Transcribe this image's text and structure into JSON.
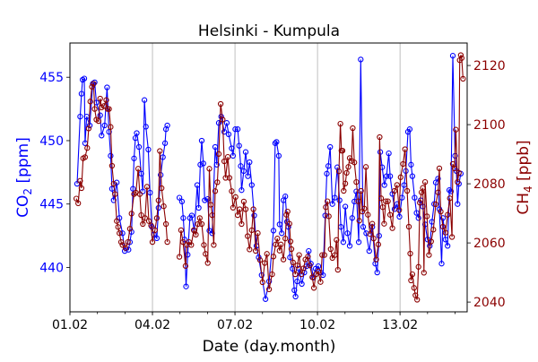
{
  "chart_data": {
    "type": "line",
    "title": "Helsinki - Kumpula",
    "xlabel": "Date (day.month)",
    "ylabel_left": "CO2 [ppm]",
    "ylabel_left_main": "CO",
    "ylabel_left_sub": "2",
    "ylabel_left_unit": " [ppm]",
    "ylabel_right": "CH4 [ppb]",
    "ylabel_right_main": "CH",
    "ylabel_right_sub": "4",
    "ylabel_right_unit": " [ppb]",
    "x_unit": "days since 01.02 00:00",
    "xlim": [
      0,
      14.44
    ],
    "ylim_left": [
      436.5,
      457.7
    ],
    "ylim_right": [
      2036.7,
      2127.6
    ],
    "x_ticks": [
      0,
      3,
      6,
      9,
      12
    ],
    "x_tick_labels": [
      "01.02",
      "04.02",
      "07.02",
      "10.02",
      "13.02"
    ],
    "x_minor_ticks_every": 1,
    "y_left_ticks": [
      440,
      445,
      450,
      455
    ],
    "y_right_ticks": [
      2040,
      2060,
      2080,
      2100,
      2120
    ],
    "grid": "vertical at major x ticks",
    "colors": {
      "co2": "#0000ff",
      "ch4": "#8b0000",
      "grid": "#b0b0b0"
    },
    "series": [
      {
        "name": "CO2",
        "axis": "left",
        "marker": "open-circle",
        "x": [
          0.26,
          0.37,
          0.42,
          0.46,
          0.52,
          0.55,
          0.61,
          0.72,
          0.83,
          0.9,
          0.96,
          1.1,
          1.15,
          1.26,
          1.35,
          1.42,
          1.48,
          1.53,
          1.59,
          1.7,
          1.8,
          1.91,
          1.99,
          2.13,
          2.18,
          2.24,
          2.29,
          2.33,
          2.38,
          2.43,
          2.51,
          2.59,
          2.65,
          2.71,
          2.76,
          2.85,
          2.91,
          2.98,
          3.05,
          3.16,
          3.22,
          3.3,
          3.38,
          3.46,
          3.49,
          3.54,
          null,
          3.98,
          4.07,
          4.12,
          4.17,
          4.22,
          4.28,
          4.36,
          4.43,
          4.52,
          4.63,
          4.68,
          4.74,
          4.79,
          4.85,
          4.9,
          5.01,
          5.07,
          5.17,
          5.28,
          5.34,
          5.41,
          5.5,
          5.61,
          5.7,
          5.77,
          5.88,
          5.93,
          6.01,
          6.1,
          6.15,
          6.21,
          6.24,
          6.32,
          6.39,
          6.47,
          6.53,
          6.61,
          6.7,
          6.78,
          6.86,
          6.97,
          7.11,
          7.24,
          7.4,
          7.46,
          7.51,
          7.59,
          7.62,
          7.7,
          7.76,
          7.83,
          7.89,
          7.94,
          8.0,
          8.09,
          8.16,
          8.2,
          8.26,
          8.33,
          8.43,
          8.52,
          8.6,
          8.68,
          8.76,
          8.85,
          8.93,
          9.03,
          9.11,
          9.2,
          9.28,
          9.34,
          9.39,
          9.46,
          9.54,
          9.63,
          9.72,
          9.8,
          9.85,
          9.94,
          10.01,
          10.09,
          10.17,
          10.26,
          10.34,
          10.41,
          10.5,
          10.57,
          10.66,
          10.77,
          10.88,
          10.99,
          11.1,
          11.17,
          11.24,
          11.28,
          11.35,
          11.43,
          11.51,
          11.59,
          11.64,
          11.72,
          11.8,
          11.89,
          11.98,
          12.07,
          12.15,
          12.21,
          12.29,
          12.35,
          12.4,
          12.45,
          12.53,
          12.6,
          12.67,
          12.75,
          12.83,
          12.91,
          13.0,
          13.08,
          13.16,
          13.24,
          13.3,
          13.38,
          13.43,
          13.51,
          13.56,
          13.65,
          13.73,
          13.79,
          13.85,
          13.92,
          14.0,
          14.05,
          14.09,
          14.14,
          14.21
        ],
        "y": [
          446.6,
          451.9,
          453.7,
          454.8,
          454.9,
          449.8,
          451.9,
          451.2,
          454.5,
          454.6,
          453.0,
          452.0,
          450.4,
          451.2,
          454.2,
          450.7,
          448.8,
          446.2,
          445.3,
          446.7,
          443.9,
          442.7,
          441.3,
          441.4,
          442.0,
          442.8,
          446.2,
          448.6,
          450.2,
          450.6,
          449.5,
          447.4,
          446.0,
          453.2,
          451.1,
          449.3,
          445.9,
          443.2,
          442.6,
          442.3,
          444.7,
          447.3,
          448.7,
          449.8,
          450.9,
          451.2,
          null,
          445.5,
          445.2,
          443.9,
          442.2,
          438.5,
          441.0,
          443.9,
          444.1,
          442.9,
          446.5,
          444.7,
          448.1,
          450.0,
          448.2,
          445.3,
          445.4,
          442.9,
          442.7,
          449.5,
          448.1,
          451.4,
          451.9,
          450.7,
          451.4,
          450.5,
          449.4,
          448.8,
          450.9,
          450.9,
          449.6,
          448.0,
          446.1,
          447.6,
          449.1,
          447.2,
          448.3,
          446.5,
          444.1,
          441.7,
          440.8,
          439.4,
          437.5,
          438.9,
          442.9,
          449.8,
          449.9,
          448.8,
          443.4,
          442.7,
          445.3,
          445.6,
          443.6,
          443.2,
          440.8,
          439.9,
          438.2,
          437.7,
          438.9,
          439.9,
          438.7,
          439.6,
          440.1,
          441.3,
          440.3,
          439.2,
          439.9,
          440.1,
          439.6,
          439.4,
          444.1,
          447.4,
          448.0,
          449.5,
          445.0,
          445.5,
          447.9,
          445.3,
          443.2,
          442.0,
          444.8,
          442.7,
          441.7,
          443.9,
          445.2,
          446.0,
          442.0,
          456.4,
          443.2,
          442.7,
          441.3,
          443.2,
          440.3,
          439.6,
          442.5,
          449.1,
          447.9,
          446.5,
          447.2,
          449.0,
          447.2,
          445.8,
          444.6,
          445.0,
          444.0,
          445.5,
          446.5,
          447.6,
          450.7,
          450.9,
          448.1,
          447.2,
          445.5,
          444.3,
          443.9,
          445.3,
          444.8,
          443.4,
          442.2,
          441.7,
          443.6,
          445.0,
          446.7,
          447.0,
          444.6,
          440.3,
          443.9,
          442.2,
          441.7,
          446.1,
          446.0,
          456.7,
          448.8,
          447.6,
          445.0,
          446.6,
          447.4
        ]
      },
      {
        "name": "CH4",
        "axis": "right",
        "marker": "open-circle",
        "x": [
          0.23,
          0.3,
          0.37,
          0.42,
          0.48,
          0.55,
          0.63,
          0.68,
          0.74,
          0.8,
          0.86,
          0.9,
          0.96,
          1.04,
          1.1,
          1.15,
          1.24,
          1.32,
          1.37,
          1.42,
          1.48,
          1.53,
          1.59,
          1.64,
          1.7,
          1.75,
          1.8,
          1.86,
          1.91,
          2.02,
          2.11,
          2.18,
          2.24,
          2.33,
          2.4,
          2.48,
          2.54,
          2.59,
          2.65,
          2.73,
          2.8,
          2.87,
          2.95,
          3.0,
          3.09,
          3.16,
          3.22,
          3.27,
          3.33,
          3.41,
          3.49,
          3.54,
          null,
          3.98,
          4.04,
          4.11,
          4.2,
          4.25,
          4.33,
          4.41,
          4.5,
          4.58,
          4.65,
          4.72,
          4.79,
          4.87,
          4.93,
          5.01,
          5.07,
          5.12,
          5.17,
          5.23,
          5.28,
          5.36,
          5.41,
          5.48,
          5.55,
          5.61,
          5.66,
          5.74,
          5.8,
          5.88,
          5.93,
          6.02,
          6.1,
          6.17,
          6.24,
          6.32,
          6.39,
          6.46,
          6.53,
          6.61,
          6.67,
          6.75,
          6.83,
          6.91,
          7.0,
          7.08,
          7.16,
          7.24,
          7.35,
          7.4,
          7.48,
          7.54,
          7.62,
          7.67,
          7.76,
          7.83,
          7.87,
          7.91,
          7.98,
          8.02,
          8.05,
          8.11,
          8.19,
          8.27,
          8.33,
          8.41,
          8.49,
          8.56,
          8.65,
          8.72,
          8.81,
          8.87,
          8.94,
          9.03,
          9.11,
          9.17,
          9.25,
          9.3,
          9.36,
          9.41,
          9.48,
          9.54,
          9.63,
          9.69,
          9.74,
          9.78,
          9.83,
          9.87,
          9.91,
          9.95,
          10.01,
          10.06,
          10.12,
          10.17,
          10.24,
          10.28,
          10.34,
          10.41,
          10.48,
          10.52,
          10.58,
          10.63,
          10.7,
          10.76,
          10.83,
          10.91,
          10.99,
          11.04,
          11.13,
          11.21,
          11.26,
          11.31,
          11.37,
          11.42,
          11.48,
          11.56,
          11.64,
          11.72,
          11.8,
          11.89,
          11.97,
          12.02,
          12.11,
          12.18,
          12.26,
          12.32,
          12.37,
          12.4,
          12.45,
          12.51,
          12.56,
          12.62,
          12.67,
          12.72,
          12.78,
          12.83,
          12.87,
          12.91,
          12.98,
          13.05,
          13.13,
          13.21,
          13.3,
          13.38,
          13.43,
          13.48,
          13.56,
          13.65,
          13.73,
          13.81,
          13.89,
          13.92,
          13.98,
          14.03,
          14.09,
          14.14,
          14.17,
          14.21,
          14.24,
          14.29
        ],
        "y": [
          2075.0,
          2073.4,
          2081.0,
          2078.5,
          2088.6,
          2089.0,
          2092.1,
          2098.7,
          2107.8,
          2112.8,
          2113.8,
          2105.3,
          2101.7,
          2101.2,
          2108.8,
          2105.8,
          2106.3,
          2108.3,
          2105.3,
          2105.3,
          2099.2,
          2086.1,
          2080.0,
          2076.5,
          2067.4,
          2065.4,
          2063.3,
          2060.3,
          2059.3,
          2058.3,
          2060.3,
          2064.8,
          2069.9,
          2076.5,
          2077.0,
          2085.1,
          2076.5,
          2069.4,
          2066.4,
          2068.4,
          2079.0,
          2067.4,
          2065.9,
          2060.3,
          2064.3,
          2068.4,
          2074.4,
          2091.1,
          2078.5,
          2072.4,
          2066.4,
          2060.3,
          null,
          2055.3,
          2064.3,
          2060.3,
          2052.2,
          2059.3,
          2060.3,
          2059.3,
          2064.3,
          2062.8,
          2066.4,
          2068.4,
          2066.4,
          2059.3,
          2056.3,
          2053.2,
          2085.1,
          2072.9,
          2069.4,
          2059.3,
          2077.5,
          2080.5,
          2090.1,
          2107.0,
          2101.7,
          2087.6,
          2082.0,
          2089.1,
          2082.0,
          2077.5,
          2071.9,
          2075.5,
          2069.4,
          2071.4,
          2066.4,
          2074.0,
          2071.4,
          2062.3,
          2057.8,
          2064.3,
          2071.4,
          2057.3,
          2063.3,
          2054.2,
          2046.7,
          2053.2,
          2056.3,
          2044.3,
          2049.4,
          2055.4,
          2059.5,
          2061.5,
          2057.4,
          2059.5,
          2054.4,
          2061.5,
          2069.5,
          2070.6,
          2066.5,
          2060.5,
          2057.9,
          2053.4,
          2049.4,
          2052.4,
          2055.9,
          2049.4,
          2051.4,
          2054.4,
          2055.4,
          2052.4,
          2048.4,
          2044.8,
          2049.4,
          2050.4,
          2046.8,
          2055.9,
          2055.9,
          2072.1,
          2074.1,
          2069.0,
          2057.9,
          2054.9,
          2055.9,
          2061.0,
          2050.9,
          2084.2,
          2100.3,
          2091.2,
          2091.2,
          2077.6,
          2080.1,
          2083.7,
          2085.7,
          2088.7,
          2087.7,
          2098.8,
          2087.2,
          2080.6,
          2074.1,
          2067.5,
          2077.6,
          2070.6,
          2071.6,
          2085.7,
          2069.5,
          2063.0,
          2066.5,
          2061.5,
          2054.4,
          2059.5,
          2095.8,
          2075.1,
          2072.1,
          2066.5,
          2074.1,
          2074.1,
          2069.5,
          2065.0,
          2077.6,
          2079.6,
          2071.1,
          2082.2,
          2086.7,
          2091.7,
          2077.6,
          2065.5,
          2056.4,
          2047.3,
          2049.4,
          2044.8,
          2042.3,
          2040.8,
          2051.9,
          2073.6,
          2077.1,
          2078.6,
          2049.9,
          2080.6,
          2069.0,
          2055.9,
          2060.5,
          2064.5,
          2073.1,
          2077.1,
          2085.2,
          2070.6,
          2065.5,
          2063.5,
          2069.5,
          2075.1,
          2062.0,
          2086.7,
          2085.2,
          2098.3,
          2080.6,
          2083.7,
          2121.8,
          2123.5,
          2122.5,
          2115.5
        ]
      }
    ]
  }
}
